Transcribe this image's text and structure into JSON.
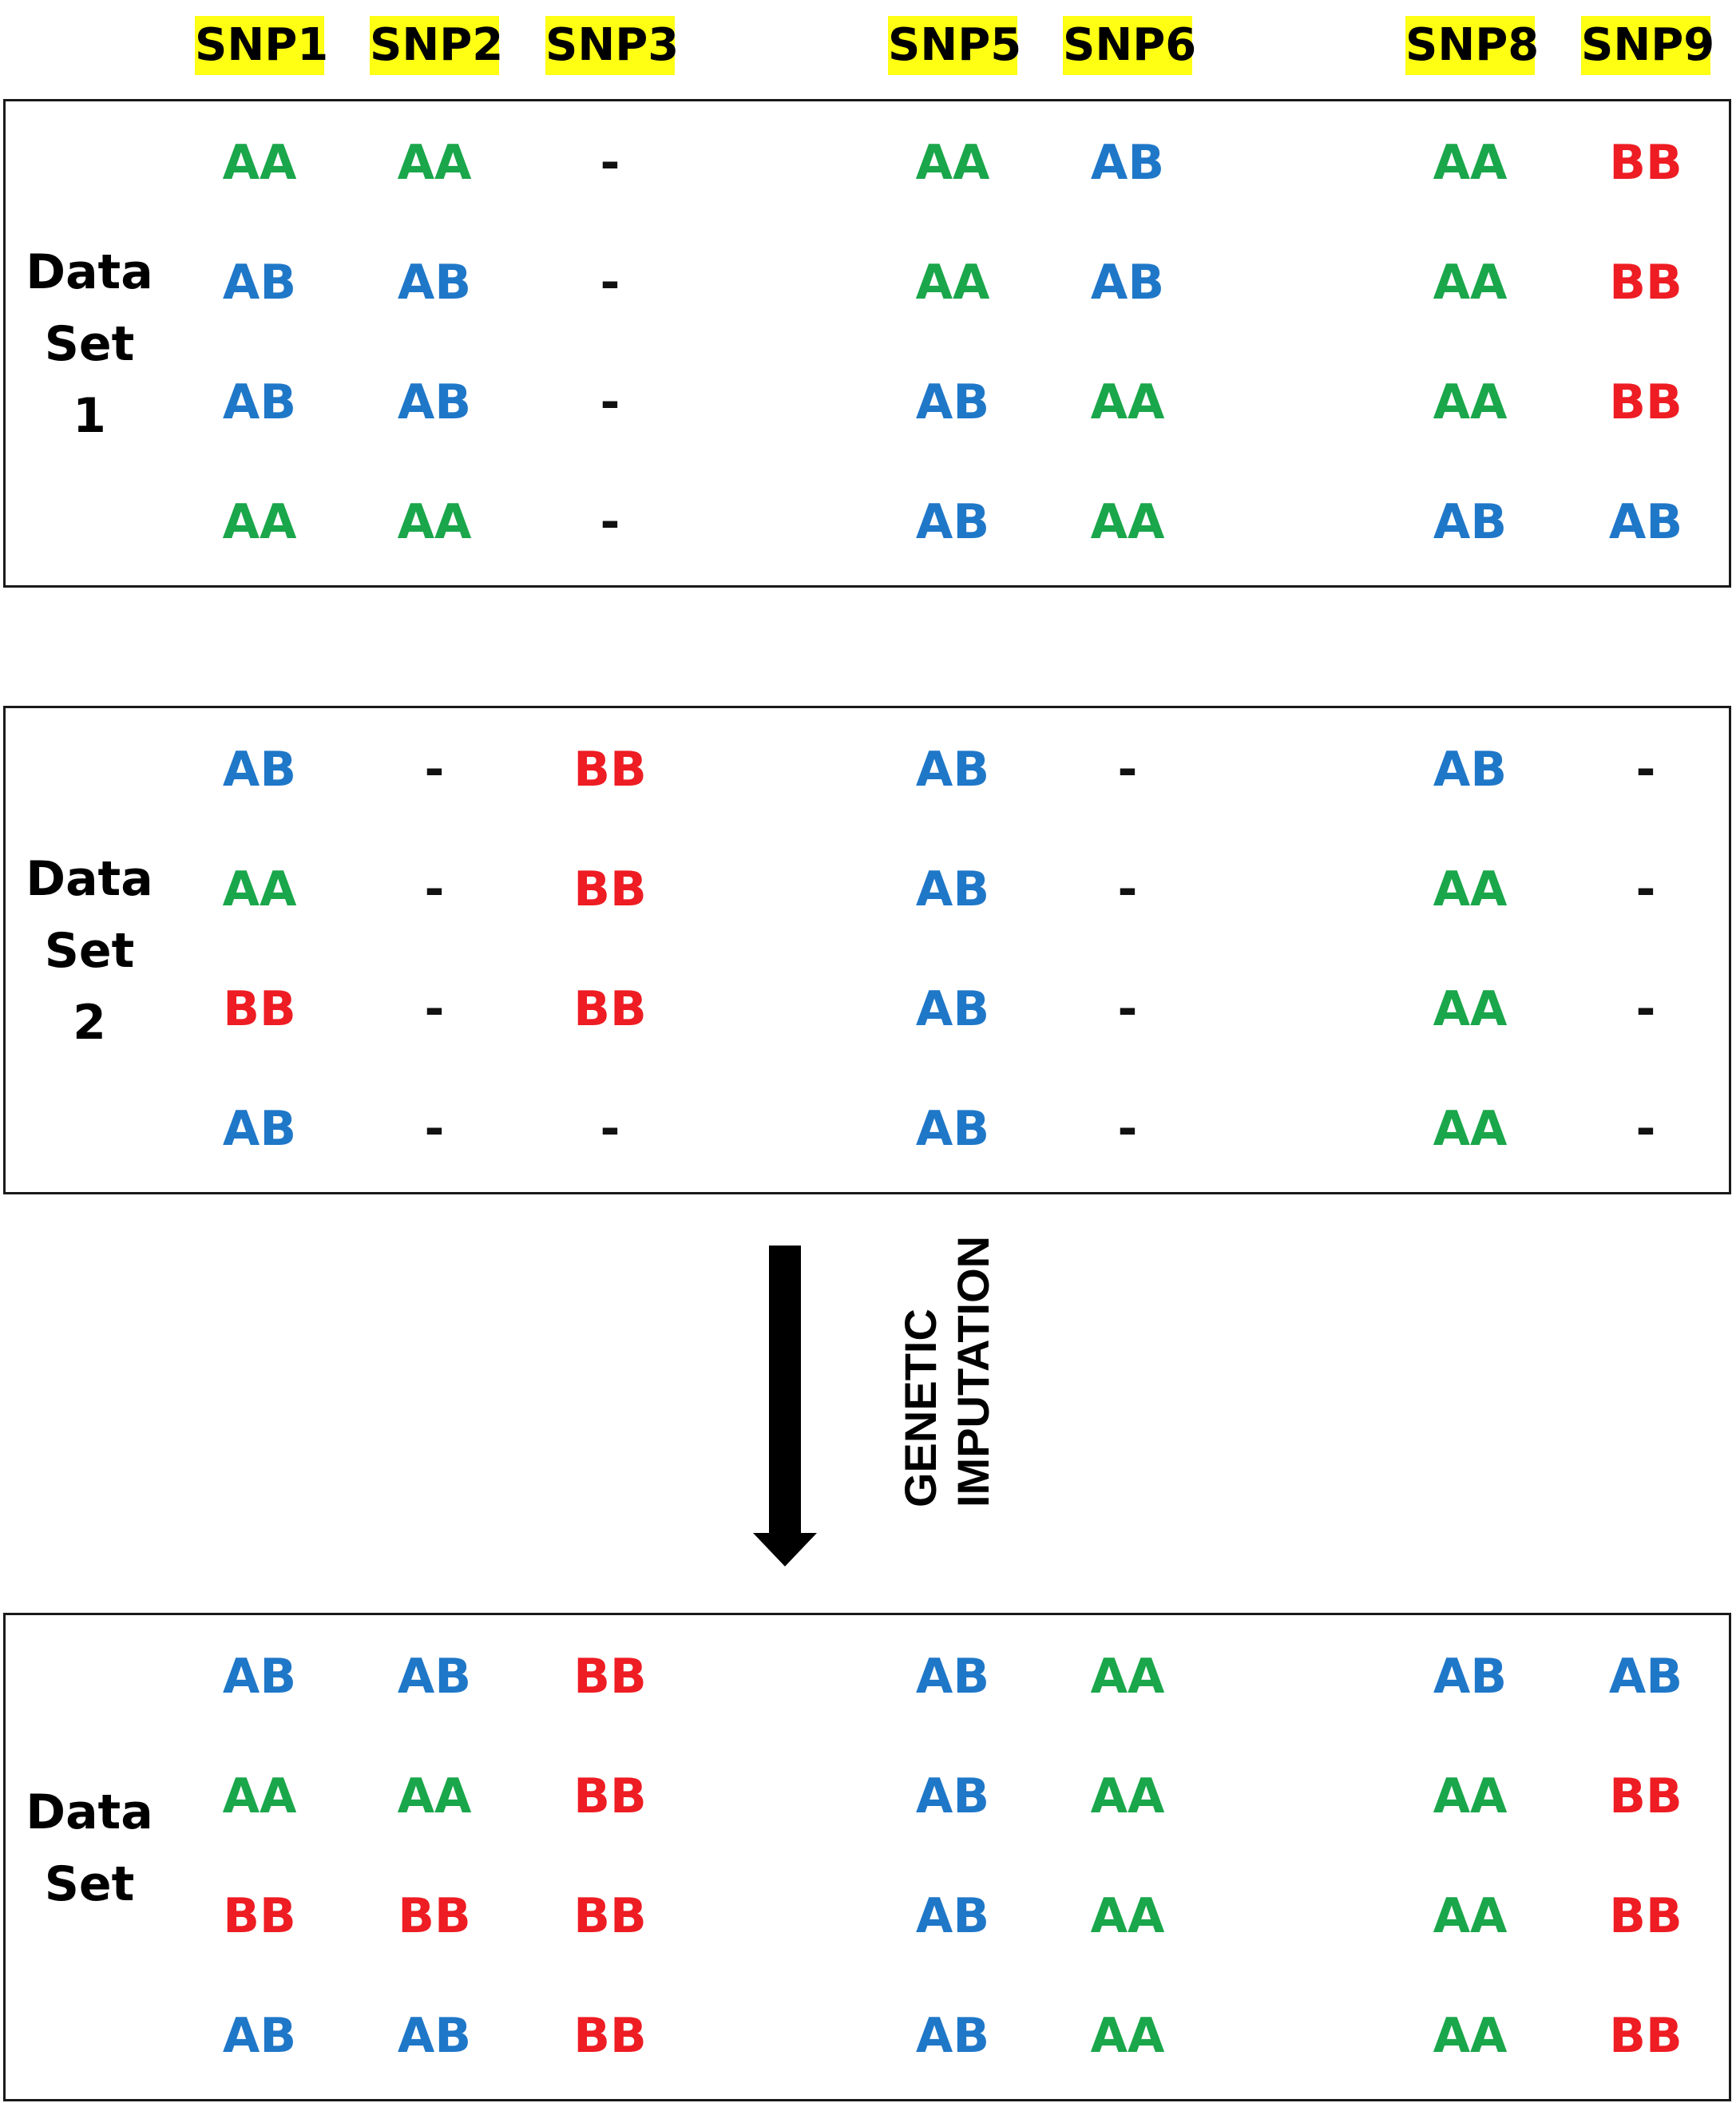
{
  "columns": [
    "SNP1",
    "SNP2",
    "SNP3",
    "SNP5",
    "SNP6",
    "SNP8",
    "SNP9"
  ],
  "colors": {
    "AA": "#1aa64a",
    "AB": "#1f77c8",
    "BB": "#ee1c23",
    "header_highlight": "#ffff14"
  },
  "panels": [
    {
      "label": "Data\nSet\n1",
      "rows": [
        [
          "AA",
          "AA",
          "-",
          "AA",
          "AB",
          "AA",
          "BB"
        ],
        [
          "AB",
          "AB",
          "-",
          "AA",
          "AB",
          "AA",
          "BB"
        ],
        [
          "AB",
          "AB",
          "-",
          "AB",
          "AA",
          "AA",
          "BB"
        ],
        [
          "AA",
          "AA",
          "-",
          "AB",
          "AA",
          "AB",
          "AB"
        ]
      ]
    },
    {
      "label": "Data\nSet\n2",
      "rows": [
        [
          "AB",
          "-",
          "BB",
          "AB",
          "-",
          "AB",
          "-"
        ],
        [
          "AA",
          "-",
          "BB",
          "AB",
          "-",
          "AA",
          "-"
        ],
        [
          "BB",
          "-",
          "BB",
          "AB",
          "-",
          "AA",
          "-"
        ],
        [
          "AB",
          "-",
          "-",
          "AB",
          "-",
          "AA",
          "-"
        ]
      ]
    },
    {
      "label": "Data\nSet",
      "rows": [
        [
          "AB",
          "AB",
          "BB",
          "AB",
          "AA",
          "AB",
          "AB"
        ],
        [
          "AA",
          "AA",
          "BB",
          "AB",
          "AA",
          "AA",
          "BB"
        ],
        [
          "BB",
          "BB",
          "BB",
          "AB",
          "AA",
          "AA",
          "BB"
        ],
        [
          "AB",
          "AB",
          "BB",
          "AB",
          "AA",
          "AA",
          "BB"
        ]
      ]
    }
  ],
  "arrow": {
    "label": "GENETIC\nIMPUTATION"
  }
}
